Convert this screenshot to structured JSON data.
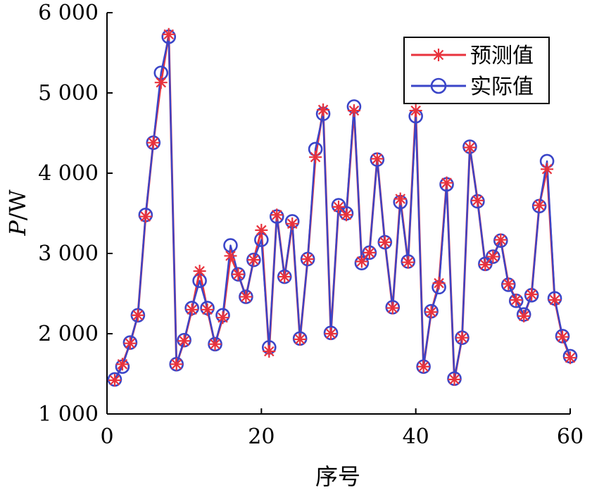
{
  "chart_data": {
    "type": "line",
    "xlabel": "序号",
    "ylabel_italic": "P",
    "ylabel_unit": "/W",
    "xlim": [
      0,
      60
    ],
    "ylim": [
      1000,
      6000
    ],
    "x_ticks": [
      "0",
      "20",
      "40",
      "60"
    ],
    "y_ticks": [
      "1 000",
      "2 000",
      "3 000",
      "4 000",
      "5 000",
      "6 000"
    ],
    "grid": false,
    "legend_position": "top-right",
    "colors": {
      "predicted": "#e8323c",
      "actual": "#3a45c8"
    },
    "x": [
      1,
      2,
      3,
      4,
      5,
      6,
      7,
      8,
      9,
      10,
      11,
      12,
      13,
      14,
      15,
      16,
      17,
      18,
      19,
      20,
      21,
      22,
      23,
      24,
      25,
      26,
      27,
      28,
      29,
      30,
      31,
      32,
      33,
      34,
      35,
      36,
      37,
      38,
      39,
      40,
      41,
      42,
      43,
      44,
      45,
      46,
      47,
      48,
      49,
      50,
      51,
      52,
      53,
      54,
      55,
      56,
      57,
      58,
      59,
      60
    ],
    "series": [
      {
        "name": "预测值",
        "marker": "asterisk",
        "values": [
          1420,
          1620,
          1880,
          2230,
          3460,
          4380,
          5130,
          5730,
          1620,
          1910,
          2300,
          2780,
          2300,
          1870,
          2200,
          2970,
          2740,
          2460,
          2920,
          3290,
          1780,
          3480,
          2710,
          3370,
          1930,
          2930,
          4200,
          4790,
          2000,
          3580,
          3480,
          4780,
          2900,
          3010,
          4180,
          3140,
          2320,
          3680,
          2890,
          4780,
          1590,
          2270,
          2630,
          3880,
          1430,
          1950,
          4320,
          3660,
          2860,
          2960,
          3170,
          2620,
          2420,
          2220,
          2490,
          3600,
          4050,
          2420,
          1960,
          1700
        ]
      },
      {
        "name": "实际值",
        "marker": "circle",
        "values": [
          1430,
          1590,
          1890,
          2230,
          3480,
          4380,
          5250,
          5700,
          1620,
          1920,
          2320,
          2660,
          2320,
          1870,
          2230,
          3100,
          2740,
          2460,
          2920,
          3170,
          1830,
          3460,
          2710,
          3400,
          1940,
          2930,
          4300,
          4740,
          2010,
          3600,
          3500,
          4830,
          2880,
          3010,
          4170,
          3140,
          2330,
          3640,
          2900,
          4710,
          1590,
          2280,
          2580,
          3860,
          1440,
          1950,
          4330,
          3650,
          2870,
          2960,
          3160,
          2610,
          2410,
          2240,
          2480,
          3590,
          4150,
          2440,
          1970,
          1720
        ]
      }
    ]
  }
}
